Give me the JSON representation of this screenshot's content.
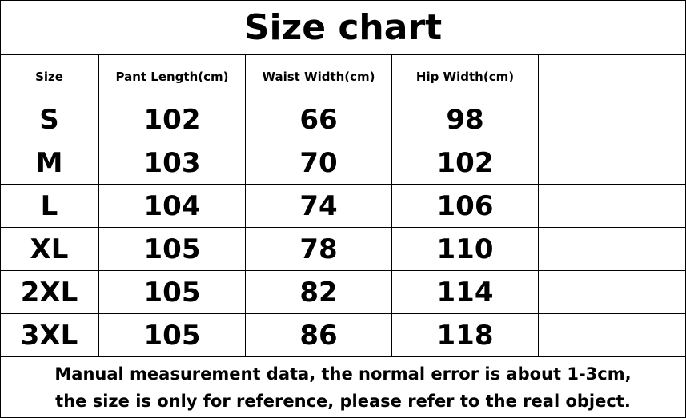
{
  "title": "Size chart",
  "headers": [
    "Size",
    "Pant Length(cm)",
    "Waist Width(cm)",
    "Hip Width(cm)",
    ""
  ],
  "rows": [
    [
      "S",
      "102",
      "66",
      "98",
      ""
    ],
    [
      "M",
      "103",
      "70",
      "102",
      ""
    ],
    [
      "L",
      "104",
      "74",
      "106",
      ""
    ],
    [
      "XL",
      "105",
      "78",
      "110",
      ""
    ],
    [
      "2XL",
      "105",
      "82",
      "114",
      ""
    ],
    [
      "3XL",
      "105",
      "86",
      "118",
      ""
    ]
  ],
  "note": [
    "Manual measurement data, the normal error is about 1-3cm,",
    "the size is only for reference, please refer to the real object."
  ]
}
